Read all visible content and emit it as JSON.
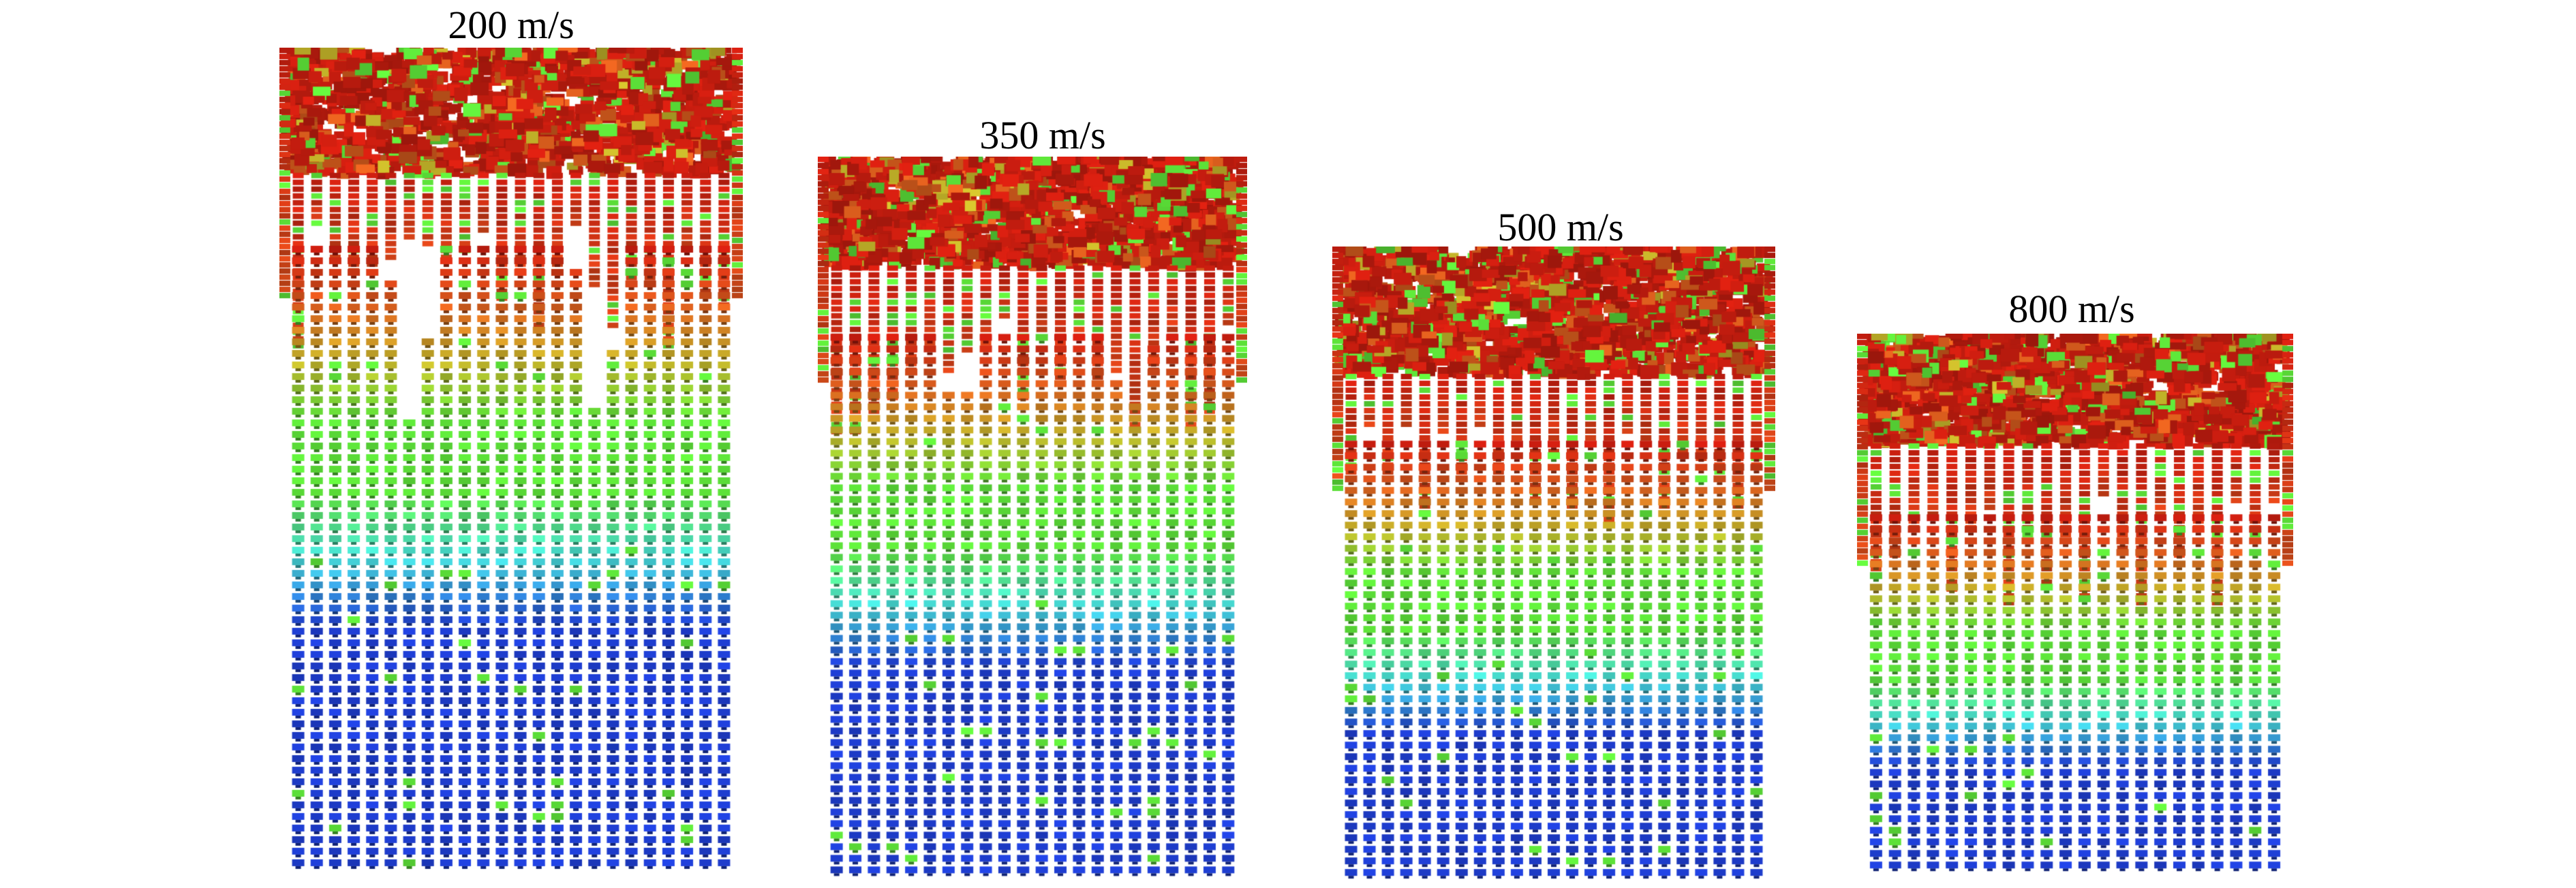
{
  "figure": {
    "panels": [
      {
        "label": "200 m/s"
      },
      {
        "label": "350 m/s"
      },
      {
        "label": "500 m/s"
      },
      {
        "label": "800 m/s"
      }
    ],
    "colors": {
      "background": "#ffffff",
      "blue": "#1f3fd6",
      "cyan": "#48e3e0",
      "green": "#5fe83a",
      "yellow": "#c8b82a",
      "orange": "#e0601e",
      "red": "#cf1e10"
    }
  }
}
